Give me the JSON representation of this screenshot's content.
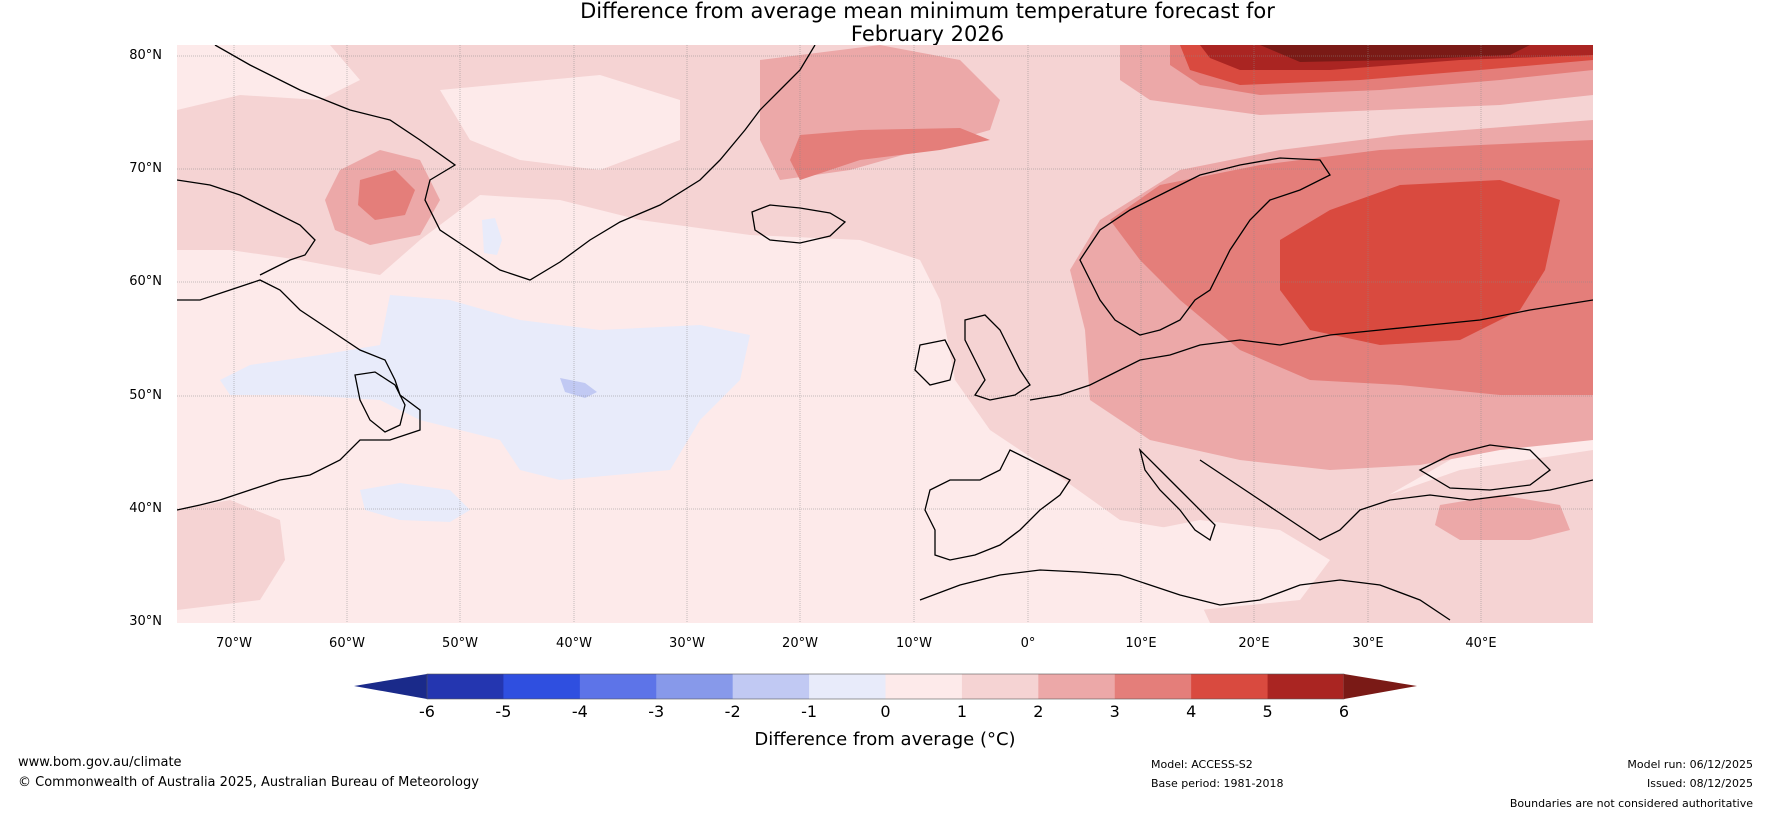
{
  "title_line1": "Difference from average mean minimum temperature forecast for",
  "title_line2": "February 2026",
  "lat_labels": [
    "80°N",
    "70°N",
    "60°N",
    "50°N",
    "40°N",
    "30°N"
  ],
  "lon_labels": [
    "70°W",
    "60°W",
    "50°W",
    "40°W",
    "30°W",
    "20°W",
    "10°W",
    "0°",
    "10°E",
    "20°E",
    "30°E",
    "40°E"
  ],
  "colorbar": {
    "ticks": [
      "-6",
      "-5",
      "-4",
      "-3",
      "-2",
      "-1",
      "0",
      "1",
      "2",
      "3",
      "4",
      "5",
      "6"
    ],
    "label": "Difference from average (°C)",
    "colors": [
      "#1a2a8a",
      "#2436b0",
      "#2f4fe0",
      "#5d74e8",
      "#8799ea",
      "#c1c9f3",
      "#e8ebfa",
      "#fdeaea",
      "#f5d3d3",
      "#eca8a8",
      "#e47e7a",
      "#d94a3f",
      "#aa2522",
      "#7a1a16"
    ]
  },
  "footer": {
    "url": "www.bom.gov.au/climate",
    "copyright": "© Commonwealth of Australia 2025, Australian Bureau of Meteorology",
    "model": "Model: ACCESS-S2",
    "base_period": "Base period: 1981-2018",
    "model_run": "Model run: 06/12/2025",
    "issued": "Issued: 08/12/2025",
    "disclaimer": "Boundaries are not considered authoritative"
  }
}
